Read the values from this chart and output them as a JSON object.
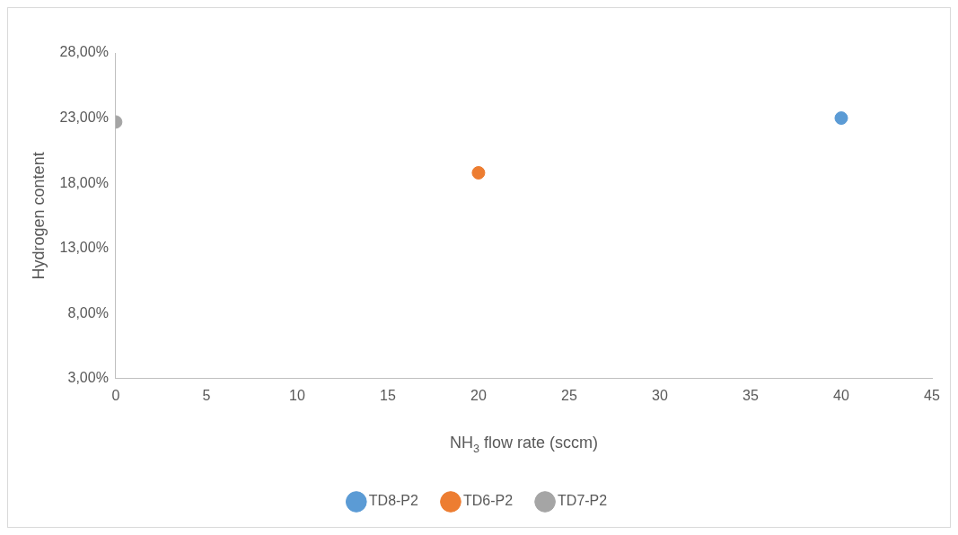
{
  "chart_data": {
    "type": "scatter",
    "xlabel": "NH$_{3}$ flow rate (sccm)",
    "ylabel": "Hydrogen content",
    "xlim": [
      0,
      45
    ],
    "xticks": [
      0,
      5,
      10,
      15,
      20,
      25,
      30,
      35,
      40,
      45
    ],
    "ylim": [
      3,
      28
    ],
    "yticks": [
      {
        "value": 3,
        "label": "3,00%"
      },
      {
        "value": 8,
        "label": "8,00%"
      },
      {
        "value": 13,
        "label": "13,00%"
      },
      {
        "value": 18,
        "label": "18,00%"
      },
      {
        "value": 23,
        "label": "23,00%"
      },
      {
        "value": 28,
        "label": "28,00%"
      }
    ],
    "series": [
      {
        "name": "TD8-P2",
        "color": "#5b9bd5",
        "x": [
          40
        ],
        "values": [
          23.0
        ]
      },
      {
        "name": "TD6-P2",
        "color": "#ed7d31",
        "x": [
          20
        ],
        "values": [
          18.8
        ]
      },
      {
        "name": "TD7-P2",
        "color": "#a5a5a5",
        "x": [
          0
        ],
        "values": [
          22.7
        ]
      }
    ],
    "marker": "circle",
    "grid": false,
    "legend": "bottom"
  }
}
